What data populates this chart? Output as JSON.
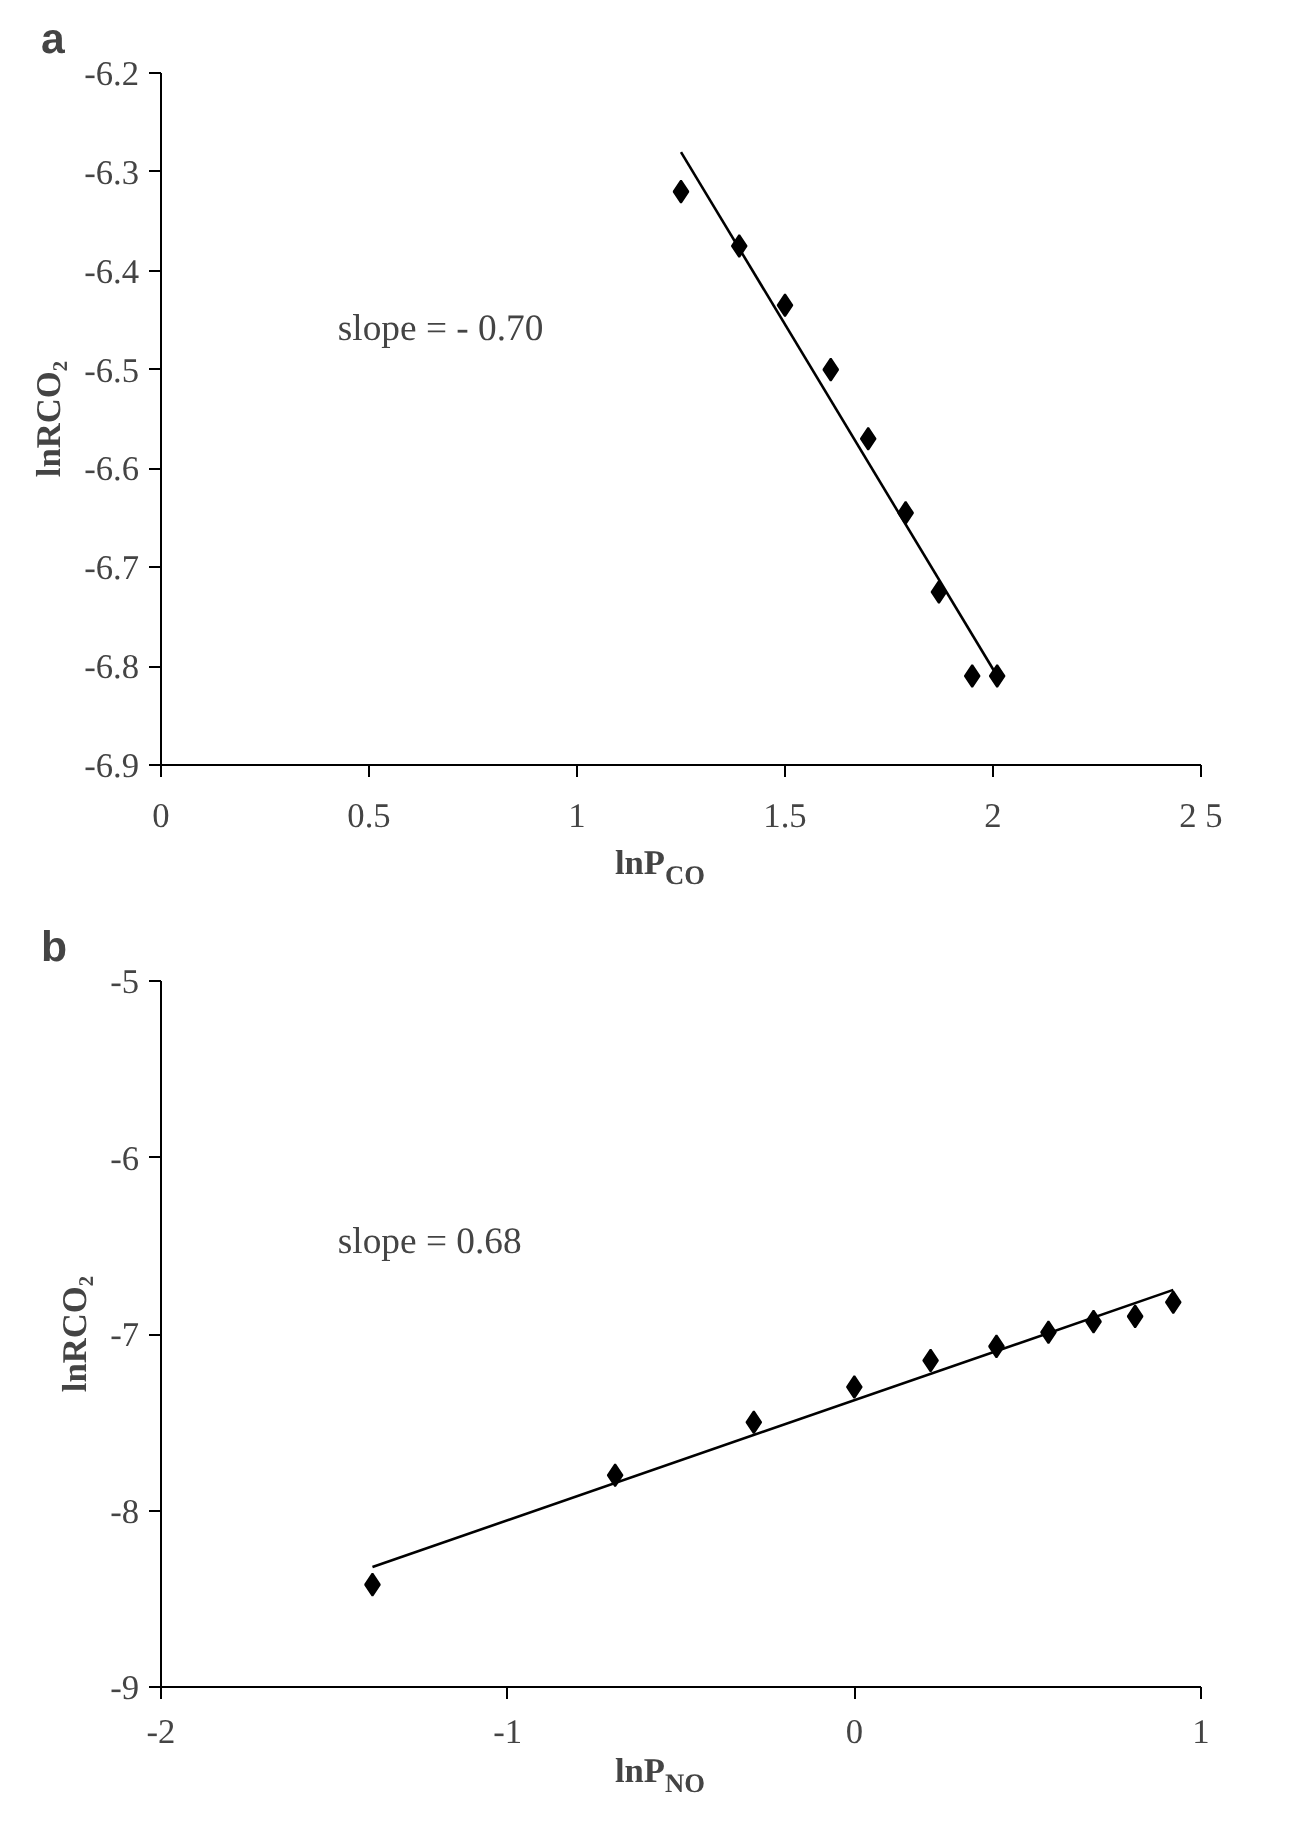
{
  "chart_data": [
    {
      "type": "scatter",
      "title": "a",
      "xlabel": "lnP$_{CO}$",
      "ylabel": "lnRCO₂",
      "xlim": [
        0,
        2.5
      ],
      "xticks": [
        0,
        0.5,
        1,
        1.5,
        2,
        {
          "value": 2.5,
          "label": "2 5"
        }
      ],
      "ylim": [
        -6.9,
        -6.2
      ],
      "yticks": [
        -6.9,
        -6.8,
        -6.7,
        -6.6,
        -6.5,
        -6.4,
        -6.3,
        -6.2
      ],
      "annotations": [
        "slope = - 0.70"
      ],
      "series": [
        {
          "color": "#000000",
          "marker": "diamond",
          "x": [
            1.25,
            1.39,
            1.5,
            1.61,
            1.7,
            1.79,
            1.87,
            1.95,
            2.01
          ],
          "values": [
            -6.32,
            -6.375,
            -6.435,
            -6.5,
            -6.57,
            -6.645,
            -6.725,
            -6.81,
            -6.81
          ]
        },
        {
          "type": "line",
          "color": "#000000",
          "x": [
            1.25,
            2.01
          ],
          "values": [
            -6.28,
            -6.81
          ]
        }
      ]
    },
    {
      "type": "scatter",
      "title": "b",
      "xlabel": "lnP$_{NO}$",
      "ylabel": "lnRCO₂",
      "xlim": [
        -2,
        1
      ],
      "xticks": [
        -2,
        -1,
        0,
        1
      ],
      "ylim": [
        -9,
        -5
      ],
      "yticks": [
        -9,
        -8,
        -7,
        -6,
        -5
      ],
      "annotations": [
        "slope = 0.68"
      ],
      "series": [
        {
          "color": "#000000",
          "marker": "diamond",
          "x": [
            -1.39,
            -0.69,
            -0.29,
            0,
            0.22,
            0.41,
            0.56,
            0.69,
            0.81,
            0.92
          ],
          "values": [
            -8.42,
            -7.8,
            -7.5,
            -7.3,
            -7.15,
            -7.07,
            -6.99,
            -6.93,
            -6.9,
            -6.82
          ]
        },
        {
          "type": "line",
          "color": "#000000",
          "x": [
            -1.39,
            0.92
          ],
          "values": [
            -8.32,
            -6.75
          ]
        }
      ]
    }
  ]
}
